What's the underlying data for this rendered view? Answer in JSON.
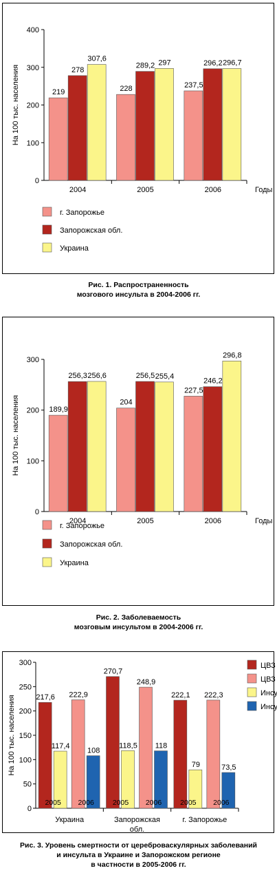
{
  "chart_data": [
    {
      "type": "bar",
      "title": "Рис. 1. Распространенность мозгового инсульта в 2004-2006 гг.",
      "caption_lines": [
        "Рис. 1. Распространенность",
        "мозгового инсульта в 2004-2006 гг."
      ],
      "categories": [
        "2004",
        "2005",
        "2006"
      ],
      "series": [
        {
          "name": "г. Запорожье",
          "values": [
            219,
            228,
            237.5
          ],
          "labels": [
            "219",
            "228",
            "237,5"
          ],
          "color": "#f4928a"
        },
        {
          "name": "Запорожская обл.",
          "values": [
            278,
            289.2,
            296.2
          ],
          "labels": [
            "278",
            "289,2",
            "296,2"
          ],
          "color": "#b3261e"
        },
        {
          "name": "Украина",
          "values": [
            307.6,
            297,
            296.7
          ],
          "labels": [
            "307,6",
            "297",
            "296,7"
          ],
          "color": "#fbf58a"
        }
      ],
      "xlabel": "Годы",
      "ylabel": "На 100 тыс. населения",
      "ylim": [
        0,
        400
      ],
      "yticks": [
        0,
        100,
        200,
        300,
        400
      ],
      "grid": false,
      "legend": "bottom-left"
    },
    {
      "type": "bar",
      "title": "Рис. 2. Заболеваемость мозговым инсультом в 2004-2006 гг.",
      "caption_lines": [
        "Рис. 2. Заболеваемость",
        "мозговым инсультом в 2004-2006 гг."
      ],
      "categories": [
        "2004",
        "2005",
        "2006"
      ],
      "series": [
        {
          "name": "г. Запорожье",
          "values": [
            189.9,
            204,
            227.5
          ],
          "labels": [
            "189,9",
            "204",
            "227,5"
          ],
          "color": "#f4928a"
        },
        {
          "name": "Запорожская обл.",
          "values": [
            256.3,
            256.5,
            246.2
          ],
          "labels": [
            "256,3",
            "256,5",
            "246,2"
          ],
          "color": "#b3261e"
        },
        {
          "name": "Украина",
          "values": [
            256.6,
            255.4,
            296.8
          ],
          "labels": [
            "256,6",
            "255,4",
            "296,8"
          ],
          "color": "#fbf58a"
        }
      ],
      "xlabel": "Годы",
      "ylabel": "На 100 тыс. населения",
      "ylim": [
        0,
        300
      ],
      "yticks": [
        0,
        100,
        200,
        300
      ],
      "grid": false,
      "legend": "bottom-left"
    },
    {
      "type": "bar",
      "title": "Рис. 3. Уровень смертности от цереброваскулярных заболеваний и инсульта в Украине и Запорожском регионе в частности в 2005-2006 гг.",
      "caption_lines": [
        "Рис. 3. Уровень смертности от цереброваскулярных заболеваний",
        "и инсульта в Украине и Запорожском регионе",
        "в частности в 2005-2006 гг."
      ],
      "categories": [
        "Украина",
        "Запорожская обл.",
        "г. Запорожье"
      ],
      "category_label_lines": [
        [
          "Украина"
        ],
        [
          "Запорожская",
          "обл."
        ],
        [
          "г. Запорожье"
        ]
      ],
      "series": [
        {
          "name": "ЦВЗ",
          "year": "2005",
          "values": [
            217.6,
            270.7,
            222.1
          ],
          "labels": [
            "217,6",
            "270,7",
            "222,1"
          ],
          "color": "#b3261e"
        },
        {
          "name": "ЦВЗ",
          "year": "2006",
          "values": [
            222.9,
            248.9,
            222.3
          ],
          "labels": [
            "222,9",
            "248,9",
            "222,3"
          ],
          "color": "#f4928a"
        },
        {
          "name": "Инсульт",
          "year": "2005",
          "values": [
            117.4,
            118.5,
            79
          ],
          "labels": [
            "117,4",
            "118,5",
            "79"
          ],
          "color": "#fbf58a"
        },
        {
          "name": "Инсульт",
          "year": "2006",
          "values": [
            108,
            118,
            73.5
          ],
          "labels": [
            "108",
            "118",
            "73,5"
          ],
          "color": "#1f64b0"
        }
      ],
      "xlabel": "",
      "ylabel": "На 100 тыс. населения",
      "ylim": [
        0,
        300
      ],
      "yticks": [
        0,
        50,
        100,
        150,
        200,
        250,
        300
      ],
      "grid": false,
      "legend": "right"
    }
  ]
}
